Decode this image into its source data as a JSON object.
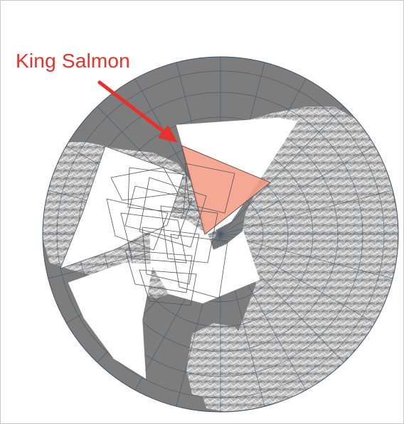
{
  "map": {
    "projection": "polar-azimuthal",
    "label": "King Salmon",
    "colors": {
      "ocean": "#7d7d7d",
      "land": "#b9b9b9",
      "graticule": "#3c5268",
      "highlight": "#f4a08a",
      "arrow": "#e8312a",
      "label": "#e8312a",
      "footprint_outline": "#555555",
      "footprint_fill": "#ffffff"
    }
  }
}
